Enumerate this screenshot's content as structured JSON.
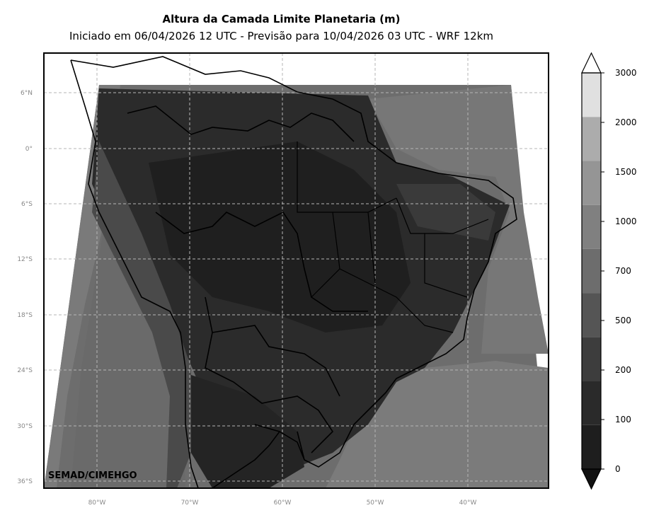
{
  "title": "Altura da Camada Limite Planetaria (m)",
  "subtitle": "Iniciado em 06/04/2026 12 UTC - Previsão para 10/04/2026 03 UTC - WRF 12km",
  "credit": "SEMAD/CIMEHGO",
  "lat_ticks": [
    "6°N",
    "0°",
    "6°S",
    "12°S",
    "18°S",
    "24°S",
    "30°S",
    "36°S"
  ],
  "lon_ticks": [
    "80°W",
    "70°W",
    "60°W",
    "50°W",
    "40°W"
  ],
  "colorbar": {
    "labels": [
      "0",
      "100",
      "200",
      "500",
      "700",
      "1000",
      "1500",
      "2000",
      "3000"
    ],
    "colors": [
      "#1e1e1e",
      "#2a2a2a",
      "#3d3d3d",
      "#555555",
      "#6d6d6d",
      "#808080",
      "#959595",
      "#acacac",
      "#e0e0e0"
    ],
    "extend": "both"
  }
}
